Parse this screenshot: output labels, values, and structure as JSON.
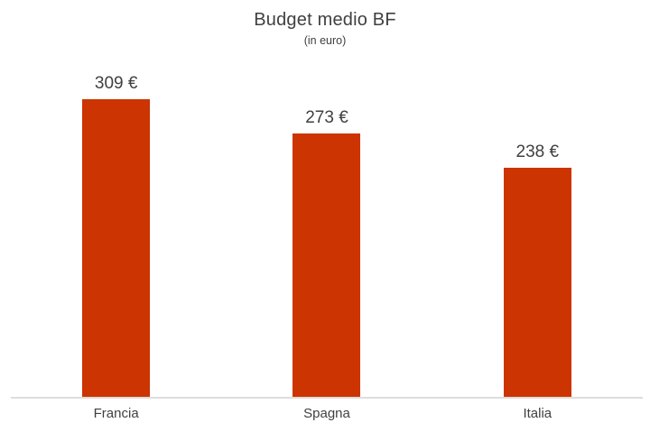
{
  "chart_data": {
    "type": "bar",
    "title": "Budget medio BF",
    "subtitle": "(in euro)",
    "categories": [
      "Francia",
      "Spagna",
      "Italia"
    ],
    "values": [
      309,
      273,
      238
    ],
    "value_labels": [
      "309 €",
      "273 €",
      "238 €"
    ],
    "xlabel": "",
    "ylabel": "",
    "ylim": [
      0,
      346
    ],
    "grid": false,
    "legend_position": "none",
    "bar_color": "#CC3402",
    "text_color": "#404040",
    "axis_line_color": "#DEDEDE",
    "background_color": "#FFFFFF"
  }
}
